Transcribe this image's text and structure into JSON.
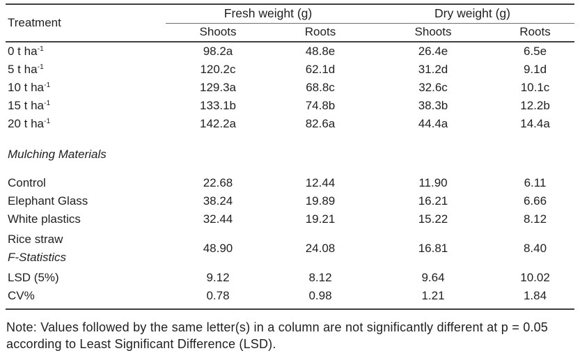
{
  "table": {
    "header": {
      "treatment": "Treatment",
      "fresh_group": "Fresh weight (g)",
      "dry_group": "Dry weight (g)",
      "subheaders": [
        "Shoots",
        "Roots",
        "Shoots",
        "Roots"
      ]
    },
    "treatment_rows": [
      {
        "label": "0 t ha",
        "sup": "-1",
        "values": [
          "98.2a",
          "48.8e",
          "26.4e",
          "6.5e"
        ]
      },
      {
        "label": "5 t ha",
        "sup": "-1",
        "values": [
          "120.2c",
          "62.1d",
          "31.2d",
          "9.1d"
        ]
      },
      {
        "label": "10 t ha",
        "sup": "-1",
        "values": [
          "129.3a",
          "68.8c",
          "32.6c",
          "10.1c"
        ]
      },
      {
        "label": "15 t ha",
        "sup": "-1",
        "values": [
          "133.1b",
          "74.8b",
          "38.3b",
          "12.2b"
        ]
      },
      {
        "label": "20 t ha",
        "sup": "-1",
        "values": [
          "142.2a",
          "82.6a",
          "44.4a",
          "14.4a"
        ]
      }
    ],
    "section_label": "Mulching Materials",
    "mulch_rows": [
      {
        "label": "Control",
        "values": [
          "22.68",
          "12.44",
          "11.90",
          "6.11"
        ]
      },
      {
        "label": "Elephant Glass",
        "values": [
          "38.24",
          "19.89",
          "16.21",
          "6.66"
        ]
      },
      {
        "label": "White plastics",
        "values": [
          "32.44",
          "19.21",
          "15.22",
          "8.12"
        ]
      }
    ],
    "rice_fstat_row": {
      "line1": "Rice straw",
      "line2": "F-Statistics",
      "values": [
        "48.90",
        "24.08",
        "16.81",
        "8.40"
      ]
    },
    "stat_rows": [
      {
        "label": "LSD (5%)",
        "values": [
          "9.12",
          "8.12",
          "9.64",
          "10.02"
        ]
      },
      {
        "label": "CV%",
        "values": [
          "0.78",
          "0.98",
          "1.21",
          "1.84"
        ]
      }
    ]
  },
  "note": {
    "text": "Note: Values followed by the same letter(s) in a column are not significantly different at p = 0.05 according to Least Significant Difference (LSD)."
  },
  "colors": {
    "text": "#1f1f1f",
    "rule_thick": "#3f3f3f",
    "rule_thin": "#6e6e6e",
    "background": "#ffffff"
  }
}
